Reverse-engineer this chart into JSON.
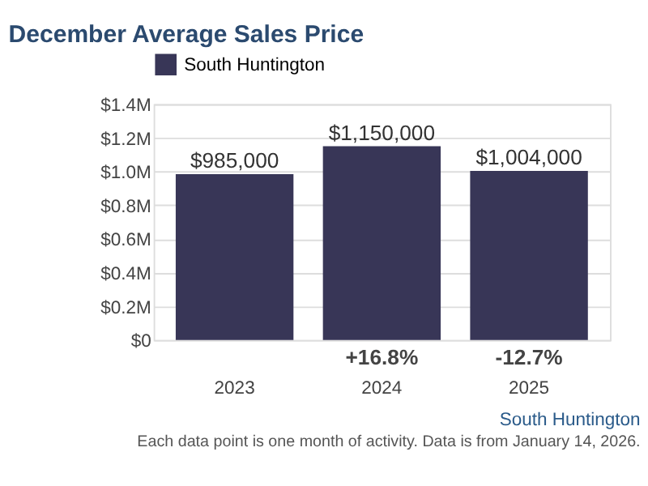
{
  "chart_data": {
    "type": "bar",
    "title": "December Average Sales Price",
    "categories": [
      "2023",
      "2024",
      "2025"
    ],
    "series": [
      {
        "name": "South Huntington",
        "color": "#383657",
        "values": [
          985000,
          1150000,
          1004000
        ]
      }
    ],
    "value_labels": [
      "$985,000",
      "$1,150,000",
      "$1,004,000"
    ],
    "ylim": [
      0,
      1400000
    ],
    "yticks": [
      {
        "value": 0,
        "label": "$0"
      },
      {
        "value": 200000,
        "label": "$0.2M"
      },
      {
        "value": 400000,
        "label": "$0.4M"
      },
      {
        "value": 600000,
        "label": "$0.6M"
      },
      {
        "value": 800000,
        "label": "$0.8M"
      },
      {
        "value": 1000000,
        "label": "$1.0M"
      },
      {
        "value": 1200000,
        "label": "$1.2M"
      },
      {
        "value": 1400000,
        "label": "$1.4M"
      }
    ],
    "grid": "y",
    "legend": "top",
    "annotations": [
      "+16.8%",
      "-12.7%",
      "South Huntington",
      "Each data point is one month of activity. Data is from January 14, 2026."
    ]
  }
}
